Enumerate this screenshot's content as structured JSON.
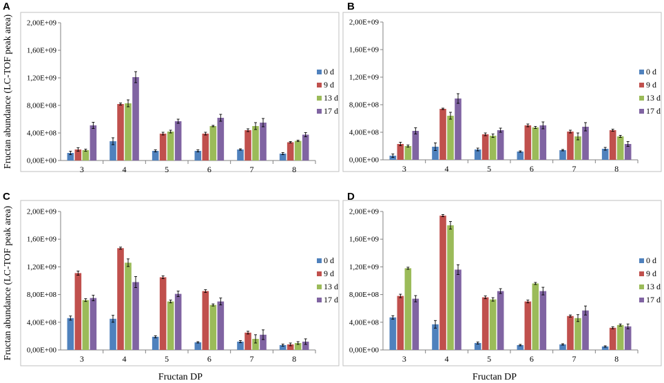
{
  "figure": {
    "ylabel": "Fructan abundance (LC-TOF peak area)",
    "xlabel": "Fructan DP"
  },
  "chart_data": [
    {
      "panel": "A",
      "type": "bar",
      "categories": [
        "3",
        "4",
        "5",
        "6",
        "7",
        "8"
      ],
      "ylim": [
        0,
        2000000000
      ],
      "yticks": [
        0,
        400000000,
        800000000,
        1200000000,
        1600000000,
        2000000000
      ],
      "ytick_labels": [
        "0,00E+00",
        "4,00E+08",
        "8,00E+08",
        "1,20E+09",
        "1,60E+09",
        "2,00E+09"
      ],
      "series": [
        {
          "name": "0 d",
          "color": "#4f81bd",
          "values": [
            110000000,
            280000000,
            140000000,
            140000000,
            160000000,
            100000000
          ],
          "errors": [
            25000000,
            50000000,
            15000000,
            15000000,
            10000000,
            15000000
          ]
        },
        {
          "name": "9 d",
          "color": "#c0504d",
          "values": [
            160000000,
            820000000,
            390000000,
            390000000,
            440000000,
            265000000
          ],
          "errors": [
            25000000,
            15000000,
            20000000,
            20000000,
            20000000,
            10000000
          ]
        },
        {
          "name": "13 d",
          "color": "#9bbb59",
          "values": [
            150000000,
            830000000,
            420000000,
            500000000,
            500000000,
            285000000
          ],
          "errors": [
            15000000,
            50000000,
            20000000,
            10000000,
            50000000,
            10000000
          ]
        },
        {
          "name": "17 d",
          "color": "#8064a2",
          "values": [
            510000000,
            1210000000,
            570000000,
            620000000,
            550000000,
            375000000
          ],
          "errors": [
            45000000,
            80000000,
            30000000,
            50000000,
            60000000,
            30000000
          ]
        }
      ]
    },
    {
      "panel": "B",
      "type": "bar",
      "categories": [
        "3",
        "4",
        "5",
        "6",
        "7",
        "8"
      ],
      "ylim": [
        0,
        2000000000
      ],
      "yticks": [
        0,
        400000000,
        800000000,
        1200000000,
        1600000000,
        2000000000
      ],
      "ytick_labels": [
        "0,00E+00",
        "4,00E+08",
        "8,00E+08",
        "1,20E+09",
        "1,60E+09",
        "2,00E+09"
      ],
      "series": [
        {
          "name": "0 d",
          "color": "#4f81bd",
          "values": [
            60000000,
            190000000,
            150000000,
            120000000,
            140000000,
            160000000
          ],
          "errors": [
            25000000,
            55000000,
            20000000,
            10000000,
            10000000,
            20000000
          ]
        },
        {
          "name": "9 d",
          "color": "#c0504d",
          "values": [
            230000000,
            740000000,
            370000000,
            500000000,
            410000000,
            430000000
          ],
          "errors": [
            25000000,
            10000000,
            20000000,
            20000000,
            20000000,
            15000000
          ]
        },
        {
          "name": "13 d",
          "color": "#9bbb59",
          "values": [
            200000000,
            640000000,
            350000000,
            470000000,
            340000000,
            340000000
          ],
          "errors": [
            15000000,
            50000000,
            25000000,
            15000000,
            50000000,
            15000000
          ]
        },
        {
          "name": "17 d",
          "color": "#8064a2",
          "values": [
            420000000,
            890000000,
            430000000,
            500000000,
            480000000,
            230000000
          ],
          "errors": [
            45000000,
            70000000,
            30000000,
            50000000,
            60000000,
            35000000
          ]
        }
      ]
    },
    {
      "panel": "C",
      "type": "bar",
      "categories": [
        "3",
        "4",
        "5",
        "6",
        "7",
        "8"
      ],
      "ylim": [
        0,
        2000000000
      ],
      "yticks": [
        0,
        400000000,
        800000000,
        1200000000,
        1600000000,
        2000000000
      ],
      "ytick_labels": [
        "0,00E+00",
        "4,00E+08",
        "8,00E+08",
        "1,20E+09",
        "1,60E+09",
        "2,00E+09"
      ],
      "series": [
        {
          "name": "0 d",
          "color": "#4f81bd",
          "values": [
            460000000,
            450000000,
            190000000,
            110000000,
            120000000,
            70000000
          ],
          "errors": [
            30000000,
            50000000,
            15000000,
            10000000,
            15000000,
            15000000
          ]
        },
        {
          "name": "9 d",
          "color": "#c0504d",
          "values": [
            1110000000,
            1470000000,
            1050000000,
            850000000,
            250000000,
            80000000
          ],
          "errors": [
            30000000,
            15000000,
            20000000,
            20000000,
            20000000,
            20000000
          ]
        },
        {
          "name": "13 d",
          "color": "#9bbb59",
          "values": [
            720000000,
            1260000000,
            700000000,
            650000000,
            160000000,
            100000000
          ],
          "errors": [
            20000000,
            55000000,
            20000000,
            15000000,
            60000000,
            20000000
          ]
        },
        {
          "name": "17 d",
          "color": "#8064a2",
          "values": [
            750000000,
            980000000,
            810000000,
            700000000,
            220000000,
            120000000
          ],
          "errors": [
            40000000,
            80000000,
            40000000,
            50000000,
            70000000,
            40000000
          ]
        }
      ]
    },
    {
      "panel": "D",
      "type": "bar",
      "categories": [
        "3",
        "4",
        "5",
        "6",
        "7",
        "8"
      ],
      "ylim": [
        0,
        2000000000
      ],
      "yticks": [
        0,
        400000000,
        800000000,
        1200000000,
        1600000000,
        2000000000
      ],
      "ytick_labels": [
        "0,00E+00",
        "4,00E+08",
        "8,00E+08",
        "1,20E+09",
        "1,60E+09",
        "2,00E+09"
      ],
      "series": [
        {
          "name": "0 d",
          "color": "#4f81bd",
          "values": [
            470000000,
            370000000,
            100000000,
            70000000,
            80000000,
            50000000
          ],
          "errors": [
            25000000,
            55000000,
            15000000,
            10000000,
            10000000,
            10000000
          ]
        },
        {
          "name": "9 d",
          "color": "#c0504d",
          "values": [
            780000000,
            1940000000,
            760000000,
            700000000,
            490000000,
            320000000
          ],
          "errors": [
            25000000,
            15000000,
            20000000,
            20000000,
            15000000,
            15000000
          ]
        },
        {
          "name": "13 d",
          "color": "#9bbb59",
          "values": [
            1180000000,
            1800000000,
            730000000,
            960000000,
            460000000,
            360000000
          ],
          "errors": [
            15000000,
            55000000,
            25000000,
            15000000,
            50000000,
            15000000
          ]
        },
        {
          "name": "17 d",
          "color": "#8064a2",
          "values": [
            740000000,
            1160000000,
            850000000,
            850000000,
            570000000,
            340000000
          ],
          "errors": [
            45000000,
            70000000,
            35000000,
            55000000,
            65000000,
            35000000
          ]
        }
      ]
    }
  ]
}
